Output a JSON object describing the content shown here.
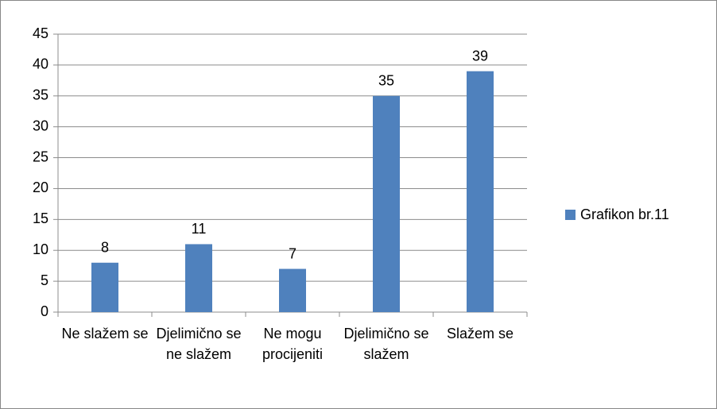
{
  "chart_data": {
    "type": "bar",
    "categories": [
      "Ne slažem se",
      "Djelimično se ne slažem",
      "Ne mogu procijeniti",
      "Djelimično se slažem",
      "Slažem se"
    ],
    "series": [
      {
        "name": "Grafikon br.11",
        "color": "#4f81bd",
        "values": [
          8,
          11,
          7,
          35,
          39
        ]
      }
    ],
    "ylim": [
      0,
      45
    ],
    "yticks": [
      0,
      5,
      10,
      15,
      20,
      25,
      30,
      35,
      40,
      45
    ],
    "grid": true,
    "legend": "right"
  }
}
